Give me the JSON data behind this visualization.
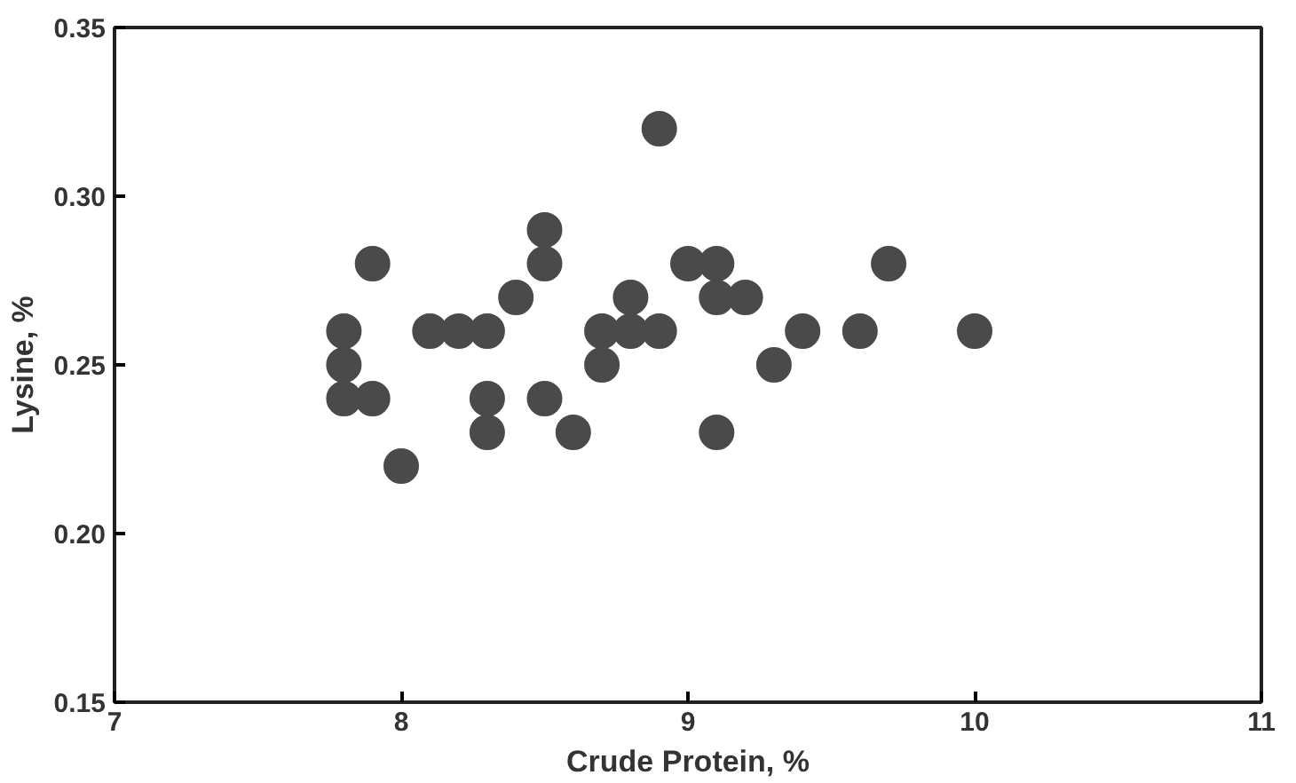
{
  "chart_data": {
    "type": "scatter",
    "xlabel": "Crude Protein, %",
    "ylabel": "Lysine, %",
    "x": [
      7.8,
      7.8,
      7.8,
      7.9,
      7.9,
      8.0,
      8.1,
      8.2,
      8.3,
      8.3,
      8.3,
      8.4,
      8.5,
      8.5,
      8.5,
      8.6,
      8.7,
      8.7,
      8.8,
      8.8,
      8.9,
      8.9,
      9.0,
      9.1,
      9.1,
      9.1,
      9.2,
      9.3,
      9.4,
      9.6,
      9.7,
      10.0
    ],
    "series": [
      {
        "color": "#4a4a4a",
        "values": [
          0.26,
          0.25,
          0.24,
          0.28,
          0.24,
          0.22,
          0.26,
          0.26,
          0.26,
          0.24,
          0.23,
          0.27,
          0.29,
          0.28,
          0.24,
          0.23,
          0.26,
          0.25,
          0.27,
          0.26,
          0.32,
          0.26,
          0.28,
          0.28,
          0.27,
          0.23,
          0.27,
          0.25,
          0.26,
          0.26,
          0.28,
          0.26
        ]
      }
    ],
    "xlim": [
      7,
      11
    ],
    "ylim": [
      0.15,
      0.35
    ],
    "xticks": [
      7,
      8,
      9,
      10,
      11
    ],
    "yticks": [
      {
        "value": 0.15,
        "label": "0.15"
      },
      {
        "value": 0.2,
        "label": "0.20"
      },
      {
        "value": 0.25,
        "label": "0.25"
      },
      {
        "value": 0.3,
        "label": "0.30"
      },
      {
        "value": 0.35,
        "label": "0.35"
      }
    ],
    "grid": false,
    "marker": "circle"
  }
}
